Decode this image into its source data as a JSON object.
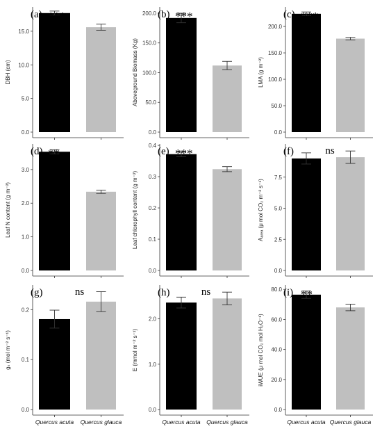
{
  "chart_data": [
    {
      "type": "bar",
      "panel_label": "(a)",
      "significance": "***",
      "ylabel": "DBH (cm)",
      "ylim": [
        0,
        18.3
      ],
      "yticks": [
        "0.0",
        "5.0",
        "10.0",
        "15.0"
      ],
      "categories": [
        "Quercus acuta",
        "Quercus glauca"
      ],
      "values": [
        17.7,
        15.6
      ],
      "errors": [
        0.3,
        0.45
      ],
      "colors": [
        "#000000",
        "#bfbfbf"
      ],
      "grid": false
    },
    {
      "type": "bar",
      "panel_label": "(b)",
      "significance": "***",
      "ylabel": "Aboveground Biomass (Kg)",
      "ylim": [
        0,
        207
      ],
      "yticks": [
        "0.0",
        "50.0",
        "100.0",
        "150.0",
        "200.0"
      ],
      "categories": [
        "Quercus acuta",
        "Quercus glauca"
      ],
      "values": [
        192,
        112
      ],
      "errors": [
        8,
        7
      ],
      "colors": [
        "#000000",
        "#bfbfbf"
      ],
      "grid": false
    },
    {
      "type": "bar",
      "panel_label": "(c)",
      "significance": "***",
      "ylabel": "LMA (g m⁻²)",
      "ylim": [
        0,
        233
      ],
      "yticks": [
        "0.0",
        "50.0",
        "100.0",
        "150.0",
        "200.0"
      ],
      "categories": [
        "Quercus acuta",
        "Quercus glauca"
      ],
      "values": [
        224,
        177
      ],
      "errors": [
        3.5,
        2.5
      ],
      "colors": [
        "#000000",
        "#bfbfbf"
      ],
      "grid": false
    },
    {
      "type": "bar",
      "panel_label": "(d)",
      "significance": "**",
      "ylabel": "Leaf N content (g m⁻²)",
      "ylim": [
        0,
        3.7
      ],
      "yticks": [
        "0.0",
        "1.0",
        "2.0",
        "3.0"
      ],
      "categories": [
        "Quercus acuta",
        "Quercus glauca"
      ],
      "values": [
        3.53,
        2.34
      ],
      "errors": [
        0.06,
        0.05
      ],
      "colors": [
        "#000000",
        "#bfbfbf"
      ],
      "grid": false
    },
    {
      "type": "bar",
      "panel_label": "(e)",
      "significance": "***",
      "ylabel": "Leaf chlorophyll content (g m⁻²)",
      "ylim": [
        0,
        0.398
      ],
      "yticks": [
        "0.0",
        "0.1",
        "0.2",
        "0.3",
        "0.4"
      ],
      "categories": [
        "Quercus acuta",
        "Quercus glauca"
      ],
      "values": [
        0.372,
        0.324
      ],
      "errors": [
        0.008,
        0.008
      ],
      "colors": [
        "#000000",
        "#bfbfbf"
      ],
      "grid": false
    },
    {
      "type": "bar",
      "panel_label": "(f)",
      "significance": "ns",
      "ylabel": "Aₐᵣₑₐ (μ mol CO₂ m⁻² s⁻¹)",
      "ylim": [
        0,
        10
      ],
      "yticks": [
        "0.0",
        "2.5",
        "5.0",
        "7.5"
      ],
      "categories": [
        "Quercus acuta",
        "Quercus glauca"
      ],
      "values": [
        9.0,
        9.1
      ],
      "errors": [
        0.45,
        0.5
      ],
      "colors": [
        "#000000",
        "#bfbfbf"
      ],
      "grid": false
    },
    {
      "type": "bar",
      "panel_label": "(g)",
      "significance": "ns",
      "ylabel": "gₛ (mol m⁻² s⁻¹)",
      "ylim": [
        0,
        0.245
      ],
      "yticks": [
        "0.0",
        "0.1",
        "0.2"
      ],
      "categories": [
        "Quercus acuta",
        "Quercus glauca"
      ],
      "values": [
        0.181,
        0.216
      ],
      "errors": [
        0.018,
        0.02
      ],
      "colors": [
        "#000000",
        "#bfbfbf"
      ],
      "grid": false
    },
    {
      "type": "bar",
      "panel_label": "(h)",
      "significance": "ns",
      "ylabel": "E (mmol m⁻² s⁻¹)",
      "ylim": [
        0,
        2.7
      ],
      "yticks": [
        "0.0",
        "1.0",
        "2.0"
      ],
      "categories": [
        "Quercus acuta",
        "Quercus glauca"
      ],
      "values": [
        2.36,
        2.45
      ],
      "errors": [
        0.12,
        0.14
      ],
      "colors": [
        "#000000",
        "#bfbfbf"
      ],
      "grid": false
    },
    {
      "type": "bar",
      "panel_label": "(i)",
      "significance": "**",
      "ylabel": "iWUE (μ mol CO₂ mol H₂O⁻¹)",
      "ylim": [
        0,
        81.5
      ],
      "yticks": [
        "0.0",
        "20.0",
        "40.0",
        "60.0",
        "80.0"
      ],
      "categories": [
        "Quercus acuta",
        "Quercus glauca"
      ],
      "values": [
        76.5,
        68
      ],
      "errors": [
        2.5,
        2.2
      ],
      "colors": [
        "#000000",
        "#bfbfbf"
      ],
      "grid": false
    }
  ]
}
